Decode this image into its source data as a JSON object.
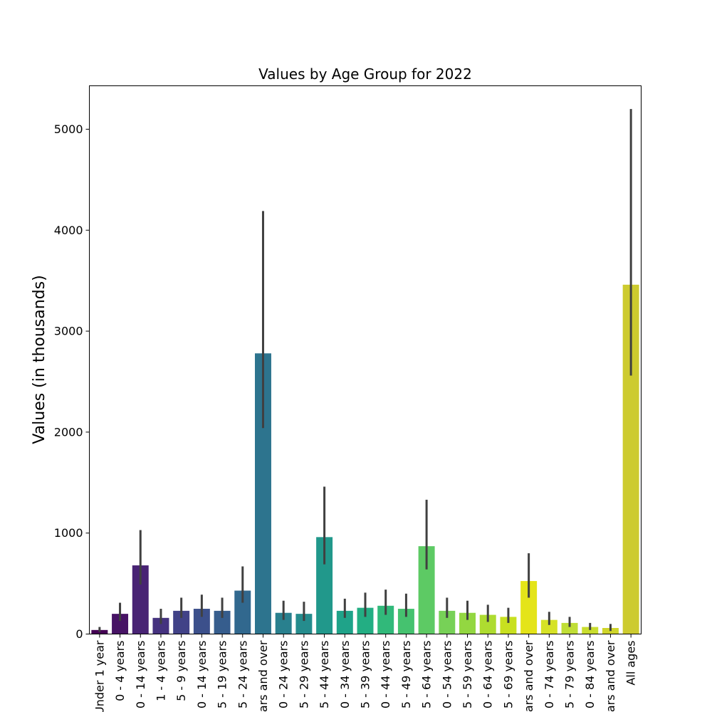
{
  "chart_data": {
    "type": "bar",
    "title": "Values by Age Group for 2022",
    "xlabel": "",
    "ylabel": "Values (in thousands)",
    "ylim": [
      0,
      5430
    ],
    "yticks": [
      0,
      1000,
      2000,
      3000,
      4000,
      5000
    ],
    "grid": false,
    "legend": "none",
    "categories": [
      "Under 1 year",
      "0 - 4 years",
      "0 - 14 years",
      "1 - 4 years",
      "5 - 9 years",
      "0 - 14 years",
      "5 - 19 years",
      "5 - 24 years",
      "ars and over",
      "0 - 24 years",
      "5 - 29 years",
      "5 - 44 years",
      "0 - 34 years",
      "5 - 39 years",
      "0 - 44 years",
      "5 - 49 years",
      "5 - 64 years",
      "0 - 54 years",
      "5 - 59 years",
      "0 - 64 years",
      "5 - 69 years",
      "ars and over",
      "0 - 74 years",
      "5 - 79 years",
      "0 - 84 years",
      "ars and over",
      "All ages"
    ],
    "values": [
      40,
      200,
      680,
      160,
      230,
      250,
      230,
      430,
      2780,
      210,
      200,
      960,
      230,
      260,
      280,
      250,
      870,
      230,
      210,
      190,
      170,
      525,
      140,
      110,
      70,
      60,
      3460
    ],
    "error_low": [
      20,
      130,
      490,
      100,
      160,
      170,
      160,
      310,
      2040,
      140,
      130,
      690,
      160,
      170,
      190,
      170,
      640,
      160,
      140,
      120,
      110,
      360,
      90,
      70,
      40,
      30,
      2560
    ],
    "error_high": [
      70,
      310,
      1030,
      250,
      360,
      390,
      360,
      670,
      4190,
      330,
      320,
      1460,
      350,
      410,
      440,
      400,
      1330,
      360,
      330,
      290,
      260,
      800,
      220,
      170,
      110,
      100,
      5200
    ],
    "colors": [
      "#440154",
      "#471365",
      "#482374",
      "#45327f",
      "#414287",
      "#3c508b",
      "#365d8d",
      "#31688e",
      "#2d748e",
      "#29808e",
      "#258c8d",
      "#21988b",
      "#1fa389",
      "#23ae83",
      "#31b97a",
      "#45c26f",
      "#5dca64",
      "#77d157",
      "#93d741",
      "#aedc30",
      "#c8e020",
      "#e4e419",
      "#d6e226",
      "#c0de36",
      "#c9dd2e",
      "#cfd52a",
      "#cdcb2f"
    ],
    "error_color": "#404040"
  }
}
